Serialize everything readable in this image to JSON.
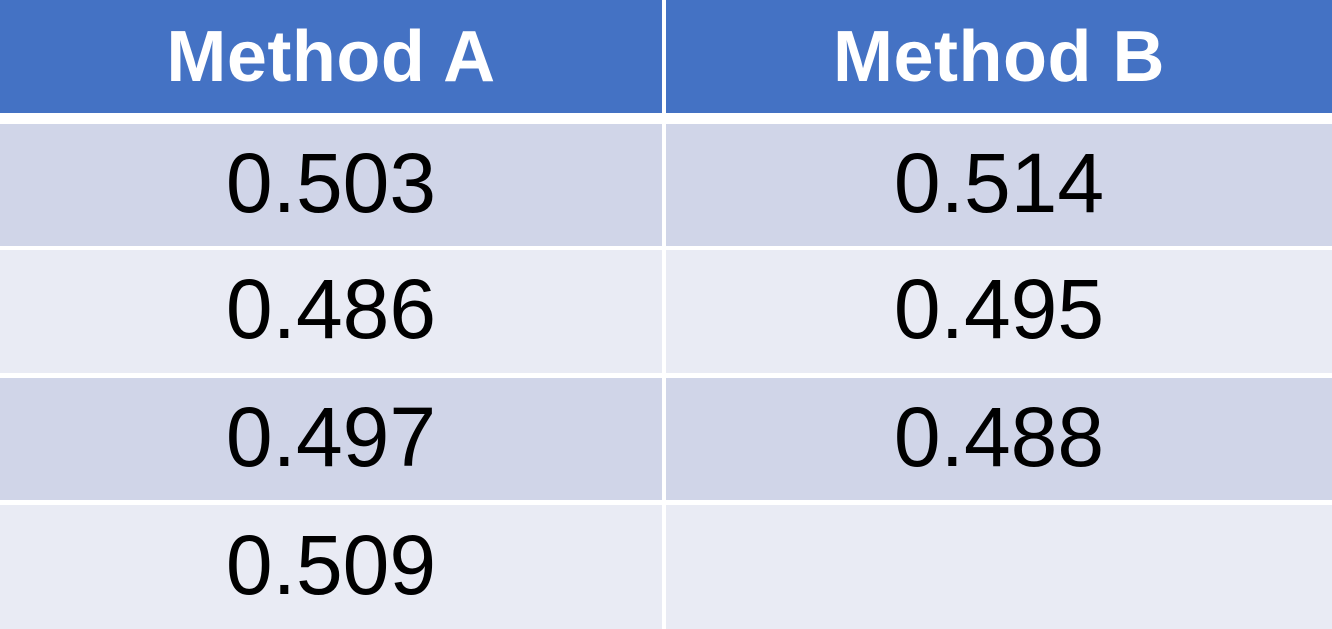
{
  "table": {
    "columns": [
      {
        "label": "Method A"
      },
      {
        "label": "Method B"
      }
    ],
    "rows": [
      {
        "method_a": "0.503",
        "method_b": "0.514"
      },
      {
        "method_a": "0.486",
        "method_b": "0.495"
      },
      {
        "method_a": "0.497",
        "method_b": "0.488"
      },
      {
        "method_a": "0.509",
        "method_b": ""
      }
    ],
    "colors": {
      "header_bg": "#4472c4",
      "header_text": "#ffffff",
      "band_dark": "#d0d5e8",
      "band_light": "#e9ebf4",
      "gap": "#ffffff",
      "cell_text": "#000000"
    }
  },
  "chart_data": {
    "type": "table",
    "title": "",
    "columns": [
      "Method A",
      "Method B"
    ],
    "rows": [
      [
        0.503,
        0.514
      ],
      [
        0.486,
        0.495
      ],
      [
        0.497,
        0.488
      ],
      [
        0.509,
        null
      ]
    ],
    "layout": {
      "header_style": "solid-blue",
      "banding": "alternating-rows",
      "grid": "white-gutters"
    }
  }
}
